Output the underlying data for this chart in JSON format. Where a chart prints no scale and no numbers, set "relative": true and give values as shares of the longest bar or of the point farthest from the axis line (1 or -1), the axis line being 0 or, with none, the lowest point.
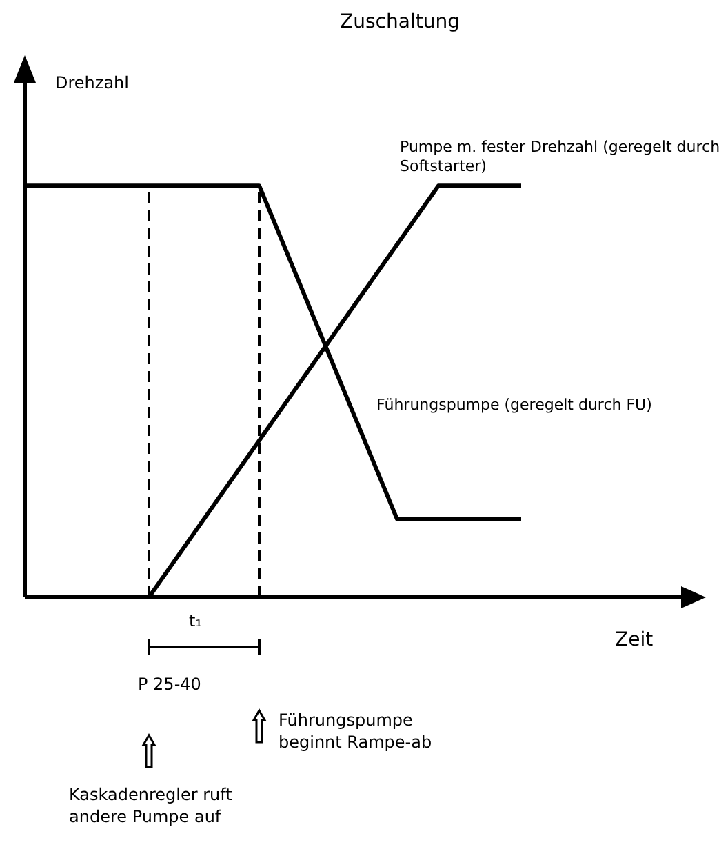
{
  "chart_data": {
    "type": "line",
    "relative": true,
    "title": "Zuschaltung",
    "xlabel": "Zeit",
    "categories": [
      null,
      null,
      null,
      null,
      null,
      null,
      null,
      null,
      null,
      null,
      null,
      null,
      null,
      null,
      null,
      null,
      null,
      null,
      null,
      null,
      null,
      null,
      null,
      null,
      null,
      null,
      null,
      null,
      null,
      null,
      null,
      null,
      null,
      null,
      null,
      null,
      null,
      null,
      null,
      null,
      null,
      null,
      null,
      null,
      null,
      null,
      null,
      null,
      null
    ],
    "series": [
      {
        "name": "Pumpe m. fester Drehzahl (geregelt durch Softstarter)",
        "color": "#000000",
        "values": [
          null,
          null,
          null,
          null,
          null,
          null,
          null,
          null,
          null,
          0,
          null,
          null,
          null,
          null,
          null,
          null,
          null,
          null,
          null,
          null,
          null,
          null,
          null,
          null,
          null,
          null,
          null,
          null,
          null,
          null,
          1,
          null,
          null,
          null,
          null,
          null,
          1,
          null,
          null,
          null,
          null,
          null,
          null,
          null,
          null,
          null,
          null,
          null,
          null
        ]
      },
      {
        "name": "Führungspumpe (geregelt durch FU)",
        "color": "#000000",
        "values": [
          1,
          null,
          null,
          null,
          null,
          null,
          null,
          null,
          null,
          null,
          null,
          null,
          null,
          null,
          null,
          null,
          null,
          1,
          null,
          null,
          null,
          null,
          null,
          null,
          null,
          null,
          null,
          0.19,
          null,
          null,
          null,
          null,
          null,
          null,
          null,
          null,
          0.19,
          null,
          null,
          null,
          null,
          null,
          null,
          null,
          null,
          null,
          null,
          null,
          null
        ]
      }
    ],
    "annotations": [
      "Drehzahl",
      "t₁",
      "P 25-40",
      "Führungspumpe beginnt Rampe-ab",
      "Kaskadenregler ruft andere Pumpe auf"
    ]
  }
}
